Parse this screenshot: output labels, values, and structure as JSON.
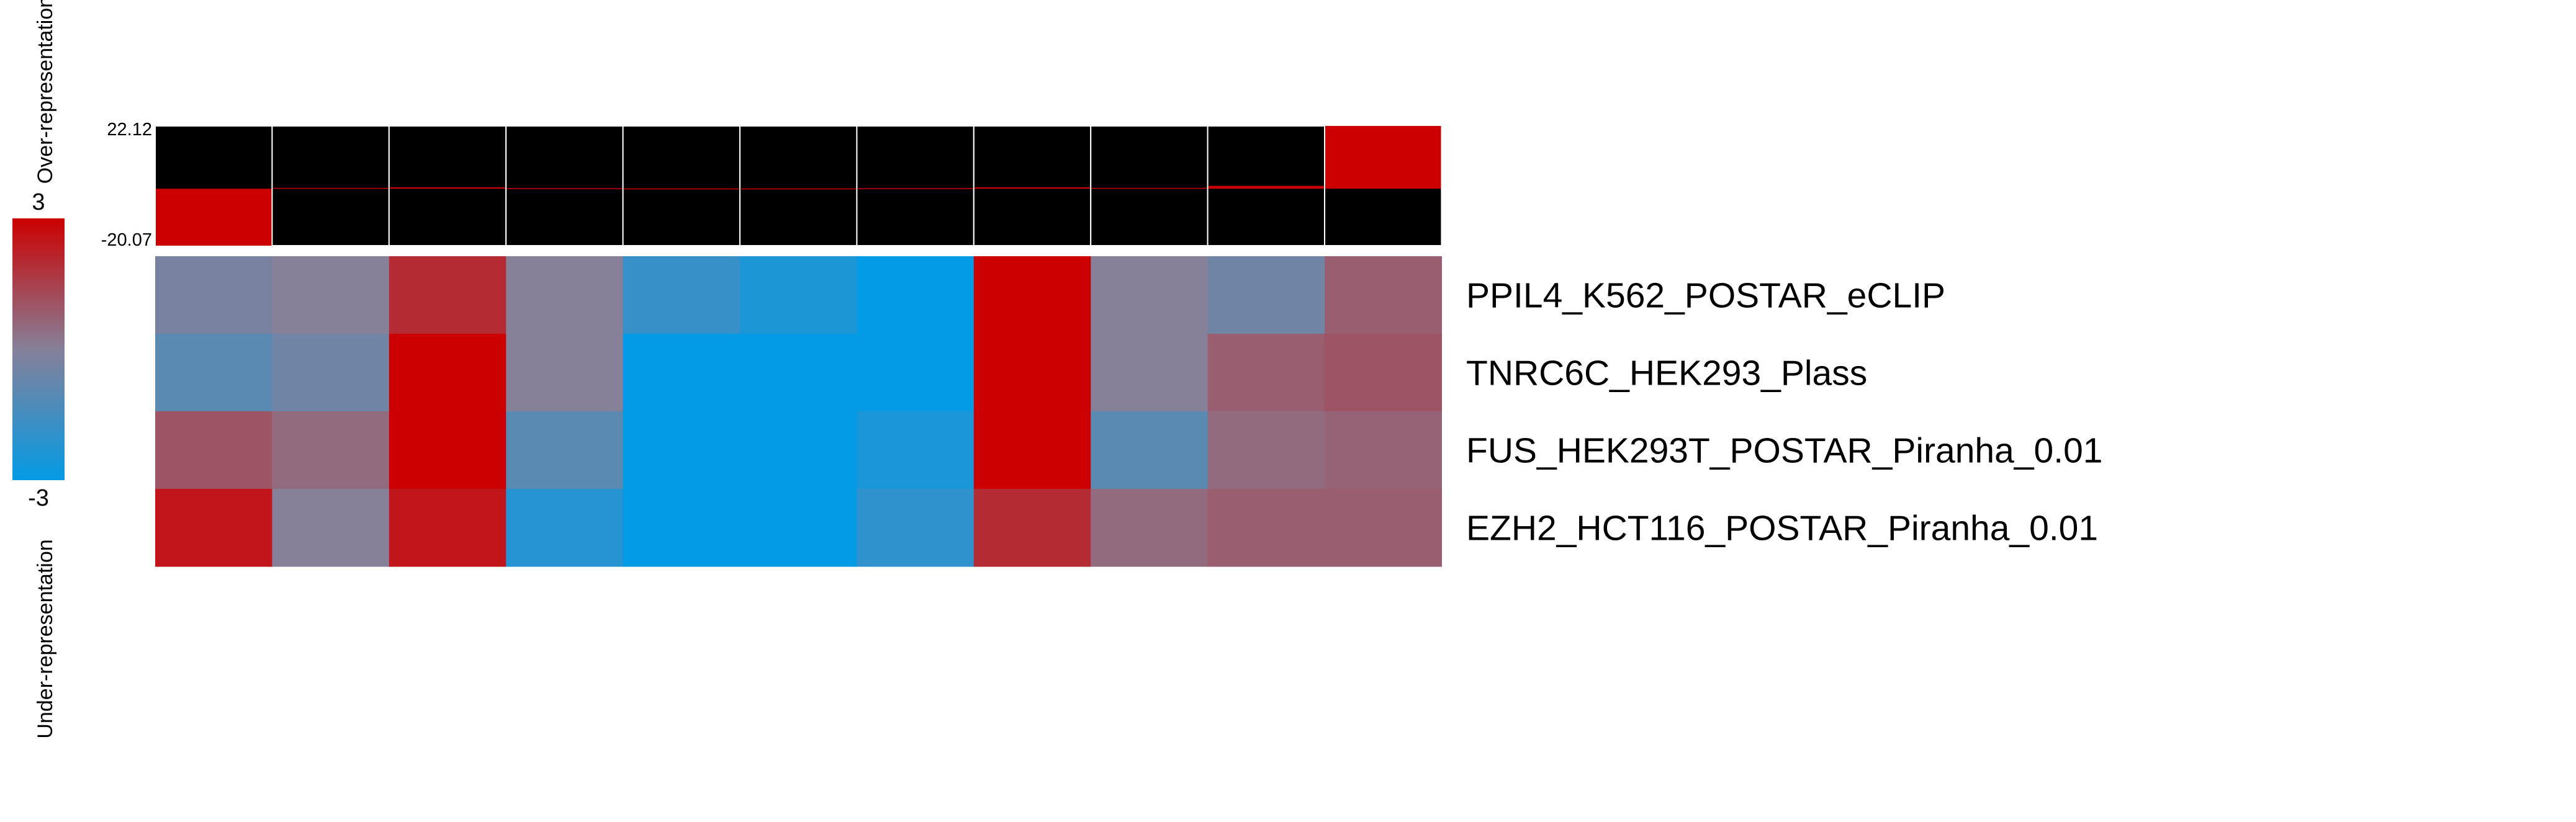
{
  "chart_data": {
    "type": "heatmap",
    "title": "",
    "legend": {
      "max_label": "3",
      "min_label": "-3",
      "top_caption": "Over-representation",
      "bottom_caption": "Under-representation",
      "colors": {
        "low": "#039be5",
        "mid": "#868099",
        "high": "#cc0000"
      },
      "range": [
        -3,
        3
      ]
    },
    "bar_panel": {
      "max_label": "22.12",
      "min_label": "-20.07",
      "range": [
        -20.07,
        22.12
      ],
      "bar_color": "#cc0000",
      "background": "#000000",
      "values": [
        -20.07,
        0.3,
        0.5,
        0.2,
        0.1,
        0.1,
        0.2,
        0.5,
        0.3,
        1.0,
        22.12
      ]
    },
    "rows": [
      "PPIL4_K562_POSTAR_eCLIP",
      "TNRC6C_HEK293_Plass",
      "FUS_HEK293T_POSTAR_Piranha_0.01",
      "EZH2_HCT116_POSTAR_Piranha_0.01"
    ],
    "n_columns": 11,
    "values": [
      [
        -0.3,
        0.0,
        2.0,
        0.0,
        -1.8,
        -2.4,
        -3.0,
        3.0,
        0.0,
        -0.5,
        0.8
      ],
      [
        -1.0,
        -0.5,
        3.0,
        0.0,
        -3.0,
        -3.0,
        -3.0,
        3.0,
        0.0,
        0.8,
        1.0
      ],
      [
        1.0,
        0.5,
        3.0,
        -1.0,
        -3.0,
        -3.0,
        -2.5,
        3.0,
        -1.0,
        0.5,
        0.7
      ],
      [
        2.5,
        0.0,
        2.5,
        -2.2,
        -3.0,
        -3.0,
        -2.0,
        2.0,
        0.5,
        0.8,
        0.8
      ]
    ]
  }
}
